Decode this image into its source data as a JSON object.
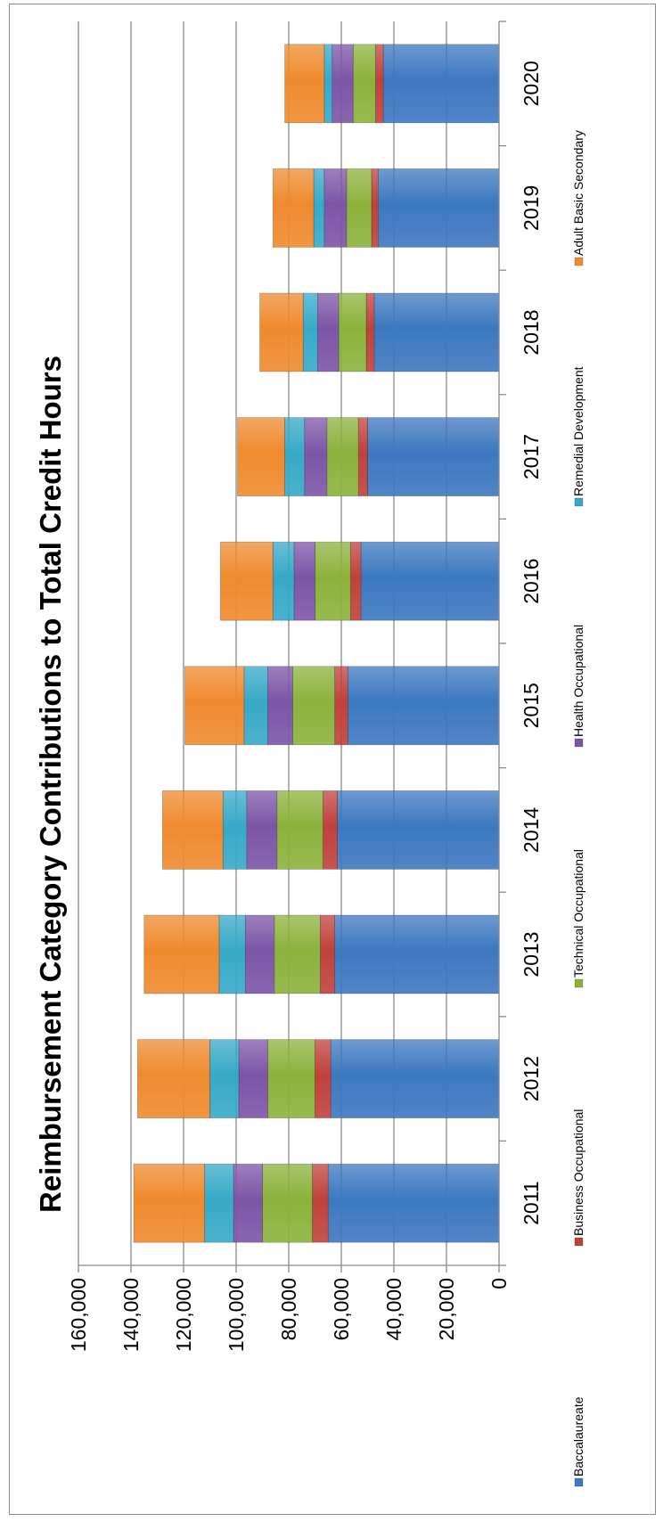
{
  "chart_data": {
    "type": "bar",
    "orientation": "stacked",
    "title": "Reimbursement Category Contributions to Total Credit Hours",
    "xlabel": "",
    "ylabel": "",
    "ylim": [
      0,
      160000
    ],
    "yticks": [
      "0",
      "20,000",
      "40,000",
      "60,000",
      "80,000",
      "100,000",
      "120,000",
      "140,000",
      "160,000"
    ],
    "grid": true,
    "legend_position": "bottom",
    "categories": [
      "2011",
      "2012",
      "2013",
      "2014",
      "2015",
      "2016",
      "2017",
      "2018",
      "2019",
      "2020"
    ],
    "series": [
      {
        "name": "Baccalaureate",
        "color": "#3d78c0",
        "values": [
          65000,
          64000,
          62500,
          61500,
          57500,
          52500,
          50000,
          47500,
          46000,
          44000
        ]
      },
      {
        "name": "Business Occupational",
        "color": "#c0413c",
        "values": [
          6000,
          6000,
          5500,
          5500,
          5000,
          4000,
          3500,
          3000,
          2500,
          3000
        ]
      },
      {
        "name": "Technical Occupational",
        "color": "#8cb23c",
        "values": [
          19000,
          18000,
          17500,
          17500,
          16000,
          13500,
          12000,
          10500,
          9500,
          8500
        ]
      },
      {
        "name": "Health Occupational",
        "color": "#7d55a8",
        "values": [
          11000,
          11000,
          11000,
          11500,
          9500,
          8000,
          8500,
          8000,
          8500,
          8000
        ]
      },
      {
        "name": "Remedial Development",
        "color": "#37a9c8",
        "values": [
          11000,
          11000,
          10000,
          9000,
          9000,
          8000,
          7500,
          5500,
          4000,
          3000
        ]
      },
      {
        "name": "Adult Basic Secondary",
        "color": "#ef8a2e",
        "values": [
          27000,
          27500,
          28500,
          23000,
          22500,
          20000,
          18000,
          16500,
          15500,
          15000
        ]
      }
    ]
  }
}
